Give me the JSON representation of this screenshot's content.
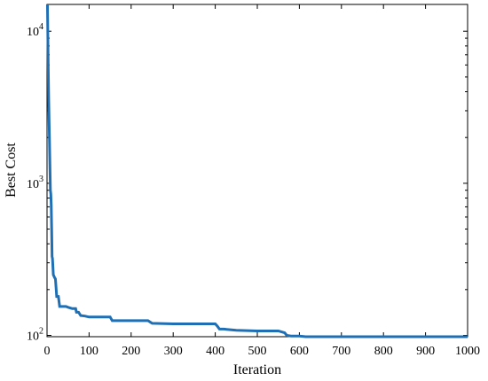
{
  "chart_data": {
    "type": "line",
    "title": "",
    "xlabel": "Iteration",
    "ylabel": "Best Cost",
    "xlim": [
      0,
      1000
    ],
    "ylim": [
      98,
      15000
    ],
    "yscale": "log",
    "grid": false,
    "xticks": [
      0,
      100,
      200,
      300,
      400,
      500,
      600,
      700,
      800,
      900,
      1000
    ],
    "xtick_labels": [
      "0",
      "100",
      "200",
      "300",
      "400",
      "500",
      "600",
      "700",
      "800",
      "900",
      "1000"
    ],
    "yticks": [
      100,
      1000,
      10000
    ],
    "ytick_labels": [
      {
        "base": "10",
        "exp": "2"
      },
      {
        "base": "10",
        "exp": "3"
      },
      {
        "base": "10",
        "exp": "4"
      }
    ],
    "line_color": "#1f6fb4",
    "series": [
      {
        "x": [
          1,
          2,
          3,
          4,
          5,
          6,
          7,
          8,
          9,
          10,
          11,
          12,
          13,
          15,
          18,
          20,
          23,
          27,
          30,
          35,
          40,
          45,
          50,
          60,
          68,
          70,
          75,
          80,
          90,
          100,
          120,
          150,
          155,
          200,
          240,
          250,
          300,
          350,
          400,
          405,
          410,
          420,
          450,
          500,
          550,
          565,
          570,
          580,
          600,
          615,
          620,
          700,
          800,
          900,
          1000
        ],
        "y": [
          15000,
          9000,
          5500,
          3500,
          2500,
          1800,
          1250,
          900,
          850,
          720,
          500,
          330,
          320,
          250,
          240,
          235,
          180,
          180,
          155,
          155,
          155,
          155,
          153,
          150,
          150,
          142,
          142,
          135,
          134,
          132,
          132,
          132,
          125,
          125,
          125,
          120,
          119,
          119,
          119,
          115,
          110,
          110,
          108,
          107,
          107,
          104,
          100,
          99,
          99,
          98,
          98,
          98,
          98,
          98,
          98
        ]
      }
    ]
  }
}
